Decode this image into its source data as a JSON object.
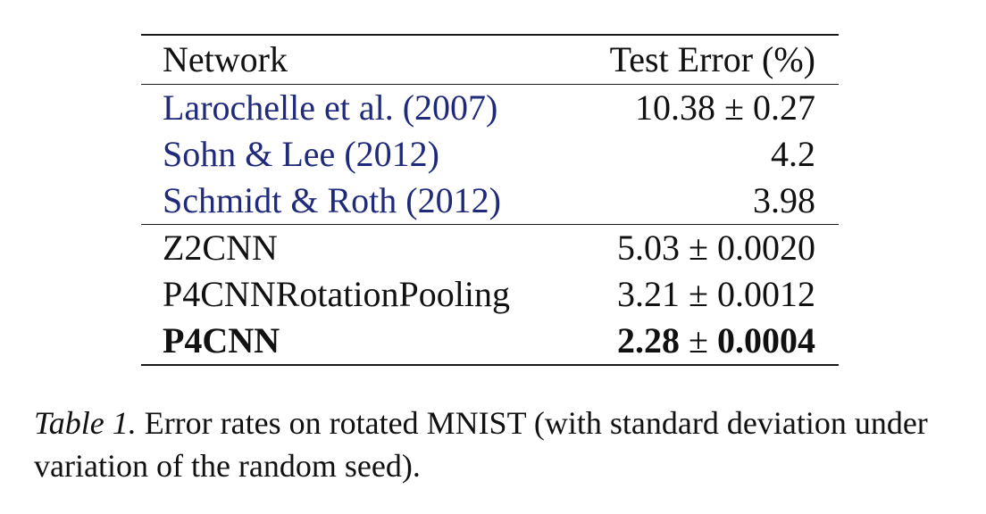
{
  "table": {
    "headers": {
      "network": "Network",
      "test_error": "Test Error (%)"
    },
    "baseline_rows": [
      {
        "network": "Larochelle et al.",
        "year": "(2007)",
        "value": "10.38",
        "pm": "±",
        "std": "0.27"
      },
      {
        "network": "Sohn & Lee",
        "year": "(2012)",
        "value": "4.2",
        "pm": "",
        "std": ""
      },
      {
        "network": "Schmidt & Roth",
        "year": "(2012)",
        "value": "3.98",
        "pm": "",
        "std": ""
      }
    ],
    "model_rows": [
      {
        "network": "Z2CNN",
        "value": "5.03",
        "pm": "±",
        "std": "0.0020"
      },
      {
        "network": "P4CNNRotationPooling",
        "value": "3.21",
        "pm": "±",
        "std": "0.0012"
      },
      {
        "network": "P4CNN",
        "value": "2.28",
        "pm": "±",
        "std": "0.0004"
      }
    ]
  },
  "caption": {
    "label": "Table 1.",
    "text": "Error rates on rotated MNIST (with standard deviation under variation of the random seed)."
  }
}
